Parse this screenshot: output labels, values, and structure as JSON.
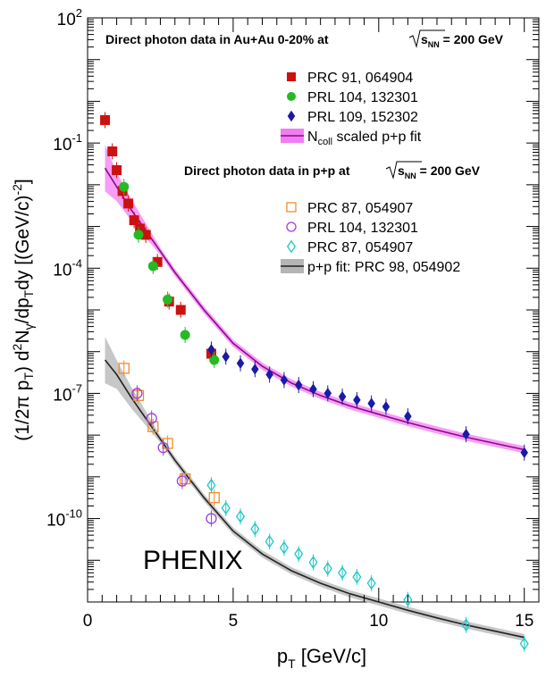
{
  "chart_data": {
    "type": "scatter",
    "xlabel_main": "p",
    "xlabel_sub": "T",
    "xlabel_rest": " [GeV/c]",
    "ylabel_parts": [
      "(1/2π p",
      "T",
      ") d",
      "2",
      "N",
      "γ",
      "/dp",
      "T",
      "dy [(GeV/c)",
      "-2",
      "]"
    ],
    "xlim": [
      0,
      15.5
    ],
    "ylog": true,
    "ylim_exp": [
      -12,
      2
    ],
    "x_ticks": [
      0,
      5,
      10,
      15
    ],
    "y_ticks": [
      {
        "exp": 2,
        "label_base": "10",
        "label_exp": "2"
      },
      {
        "exp": -1,
        "label_base": "10",
        "label_exp": "-1"
      },
      {
        "exp": -4,
        "label_base": "10",
        "label_exp": "-4"
      },
      {
        "exp": -7,
        "label_base": "10",
        "label_exp": "-7"
      },
      {
        "exp": -10,
        "label_base": "10",
        "label_exp": "-10"
      }
    ],
    "annotation": "PHENIX",
    "legend_auau": {
      "header": "Direct photon data in Au+Au 0-20% at",
      "sqrt_label": "s",
      "sqrt_sub": "NN",
      "energy": " = 200 GeV",
      "entries": [
        {
          "label": "PRC 91, 064904",
          "marker": "square",
          "color": "#cc1111"
        },
        {
          "label": "PRL 104, 132301",
          "marker": "circle",
          "color": "#22bb22"
        },
        {
          "label": "PRL 109, 152302",
          "marker": "diamond",
          "color": "#1a1aa8"
        },
        {
          "label_main": "N",
          "label_sub": "coll",
          "label_rest": " scaled p+p fit",
          "marker": "band",
          "color": "#f27df2"
        }
      ]
    },
    "legend_pp": {
      "header": "Direct photon data in p+p at",
      "sqrt_label": "s",
      "sqrt_sub": "NN",
      "energy": " = 200 GeV",
      "entries": [
        {
          "label": "PRC 87, 054907",
          "marker": "open-square",
          "color": "#f08c28"
        },
        {
          "label": "PRL 104, 132301",
          "marker": "open-circle",
          "color": "#9a40d8"
        },
        {
          "label": "PRC 87, 054907",
          "marker": "open-diamond",
          "color": "#1ec8c8"
        },
        {
          "label": "p+p fit: PRC 98, 054902",
          "marker": "band",
          "color": "#b5b5b5"
        }
      ]
    },
    "series": [
      {
        "name": "PRC 91, 064904",
        "marker": "square",
        "color": "#cc1111",
        "x": [
          0.6,
          0.85,
          1.0,
          1.2,
          1.4,
          1.6,
          1.8,
          2.0,
          2.4,
          2.8,
          3.2,
          4.25
        ],
        "y": [
          -0.45,
          -1.2,
          -1.65,
          -2.15,
          -2.45,
          -2.85,
          -3.05,
          -3.2,
          -3.85,
          -4.8,
          -5.0,
          -6.05
        ]
      },
      {
        "name": "PRL 104, 132301",
        "marker": "circle",
        "color": "#22bb22",
        "x": [
          1.25,
          1.75,
          2.25,
          2.75,
          3.35,
          4.35
        ],
        "y": [
          -2.05,
          -3.2,
          -3.95,
          -4.75,
          -5.6,
          -6.2
        ]
      },
      {
        "name": "PRL 109, 152302",
        "marker": "diamond",
        "color": "#1a1aa8",
        "x": [
          4.25,
          4.75,
          5.25,
          5.75,
          6.25,
          6.75,
          7.25,
          7.75,
          8.25,
          8.75,
          9.25,
          9.75,
          10.25,
          11.0,
          13.0,
          15.0
        ],
        "y": [
          -5.95,
          -6.12,
          -6.28,
          -6.42,
          -6.55,
          -6.68,
          -6.8,
          -6.9,
          -7.0,
          -7.08,
          -7.16,
          -7.24,
          -7.32,
          -7.55,
          -7.98,
          -8.42
        ]
      },
      {
        "name": "PRC 87, 054907",
        "marker": "open-square",
        "color": "#f08c28",
        "x": [
          1.25,
          1.75,
          2.25,
          2.75,
          3.35,
          4.35
        ],
        "y": [
          -6.4,
          -7.05,
          -7.8,
          -8.2,
          -9.05,
          -9.5
        ]
      },
      {
        "name": "PRL 104, 132301",
        "marker": "open-circle",
        "color": "#9a40d8",
        "x": [
          1.7,
          2.2,
          2.6,
          3.25,
          4.25
        ],
        "y": [
          -7.0,
          -7.6,
          -8.3,
          -9.1,
          -10.0
        ]
      },
      {
        "name": "PRC 87, 054907",
        "marker": "open-diamond",
        "color": "#1ec8c8",
        "x": [
          4.25,
          4.75,
          5.25,
          5.75,
          6.25,
          6.75,
          7.25,
          7.75,
          8.25,
          8.75,
          9.25,
          9.75,
          11.0,
          13.0,
          15.0
        ],
        "y": [
          -9.2,
          -9.75,
          -9.95,
          -10.25,
          -10.55,
          -10.7,
          -10.85,
          -11.05,
          -11.2,
          -11.3,
          -11.4,
          -11.55,
          -11.95,
          -12.55,
          -13.0
        ]
      }
    ],
    "fits": [
      {
        "name": "N_coll scaled p+p fit",
        "color": "#8a0a8a",
        "band_color": "#f58cf5",
        "x": [
          0.6,
          1.0,
          1.5,
          2.0,
          2.5,
          3.0,
          3.5,
          4.0,
          5.0,
          6.0,
          7.0,
          8.0,
          9.0,
          10.0,
          11.0,
          12.0,
          13.0,
          14.0,
          15.0
        ],
        "y": [
          -1.6,
          -2.05,
          -2.6,
          -3.1,
          -3.6,
          -4.1,
          -4.55,
          -5.0,
          -5.8,
          -6.35,
          -6.75,
          -7.05,
          -7.3,
          -7.5,
          -7.7,
          -7.88,
          -8.05,
          -8.2,
          -8.35
        ]
      },
      {
        "name": "p+p fit: PRC 98, 054902",
        "color": "#222222",
        "band_color": "#bdbdbd",
        "x": [
          0.6,
          1.0,
          1.5,
          2.0,
          2.5,
          3.0,
          3.5,
          4.0,
          5.0,
          6.0,
          7.0,
          8.0,
          9.0,
          10.0,
          11.0,
          12.0,
          13.0,
          14.0,
          15.0
        ],
        "y": [
          -6.2,
          -6.55,
          -7.1,
          -7.6,
          -8.1,
          -8.6,
          -9.05,
          -9.5,
          -10.3,
          -10.85,
          -11.25,
          -11.55,
          -11.8,
          -12.0,
          -12.2,
          -12.38,
          -12.55,
          -12.7,
          -12.85
        ]
      }
    ]
  }
}
